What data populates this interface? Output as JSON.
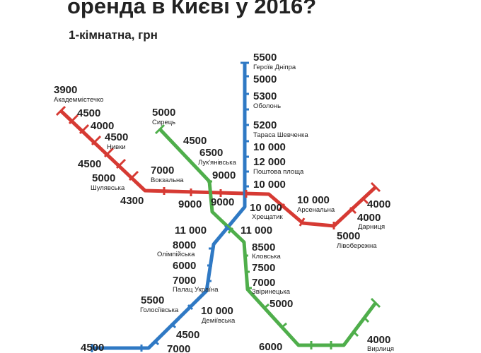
{
  "title": "оренда в Києві у 2016?",
  "subtitle": "1-кімнатна, грн",
  "line_colors": {
    "red": "#d63a33",
    "blue": "#2f79c4",
    "green": "#4fae4b"
  },
  "red_line": [
    {
      "price": "3900",
      "station": "Академмістечко"
    },
    {
      "price": "4500",
      "station": ""
    },
    {
      "price": "4000",
      "station": ""
    },
    {
      "price": "4500",
      "station": "Нивки"
    },
    {
      "price": "4500",
      "station": ""
    },
    {
      "price": "5000",
      "station": "Шулявська"
    },
    {
      "price": "4300",
      "station": ""
    },
    {
      "price": "7000",
      "station": "Вокзальна"
    },
    {
      "price": "9000",
      "station": ""
    },
    {
      "price": "9000",
      "station": ""
    },
    {
      "price": "10 000",
      "station": "Хрещатик"
    },
    {
      "price": "10 000",
      "station": "Арсенальна"
    },
    {
      "price": "5000",
      "station": "Лівобережна"
    },
    {
      "price": "4000",
      "station": "Дарниця"
    },
    {
      "price": "4000",
      "station": ""
    }
  ],
  "blue_line": [
    {
      "price": "5500",
      "station": "Героїв Дніпра"
    },
    {
      "price": "5000",
      "station": ""
    },
    {
      "price": "5300",
      "station": "Оболонь"
    },
    {
      "price": "5200",
      "station": "Тараса Шевченка"
    },
    {
      "price": "10 000",
      "station": ""
    },
    {
      "price": "12 000",
      "station": "Поштова площа"
    },
    {
      "price": "10 000",
      "station": ""
    },
    {
      "price": "11 000",
      "station": ""
    },
    {
      "price": "8000",
      "station": "Олімпійська"
    },
    {
      "price": "6000",
      "station": ""
    },
    {
      "price": "7000",
      "station": "Палац Україна"
    },
    {
      "price": "5500",
      "station": "Голосіївська"
    },
    {
      "price": "10 000",
      "station": "Деміївська"
    },
    {
      "price": "4500",
      "station": ""
    },
    {
      "price": "7000",
      "station": ""
    },
    {
      "price": "4500",
      "station": ""
    }
  ],
  "green_line": [
    {
      "price": "5000",
      "station": "Сирець"
    },
    {
      "price": "4500",
      "station": ""
    },
    {
      "price": "6500",
      "station": "Лук'янівська"
    },
    {
      "price": "9000",
      "station": ""
    },
    {
      "price": "11 000",
      "station": ""
    },
    {
      "price": "8500",
      "station": "Кловська"
    },
    {
      "price": "7500",
      "station": ""
    },
    {
      "price": "7000",
      "station": "Звіринецька"
    },
    {
      "price": "5000",
      "station": ""
    },
    {
      "price": "6000",
      "station": ""
    },
    {
      "price": "4000",
      "station": "Вирлиця"
    }
  ]
}
